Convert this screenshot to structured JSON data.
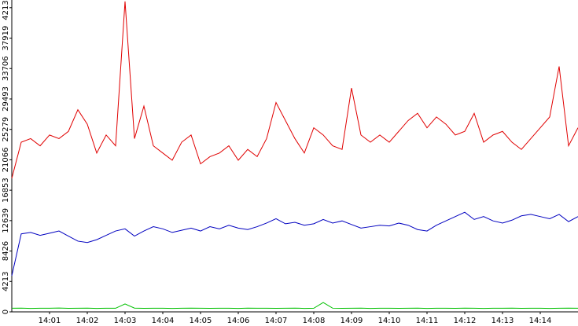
{
  "chart_data": {
    "type": "line",
    "x": [
      0,
      0.25,
      0.5,
      0.75,
      1,
      1.25,
      1.5,
      1.75,
      2,
      2.25,
      2.5,
      2.75,
      3,
      3.25,
      3.5,
      3.75,
      4,
      4.25,
      4.5,
      4.75,
      5,
      5.25,
      5.5,
      5.75,
      6,
      6.25,
      6.5,
      6.75,
      7,
      7.25,
      7.5,
      7.75,
      8,
      8.25,
      8.5,
      8.75,
      9,
      9.25,
      9.5,
      9.75,
      10,
      10.25,
      10.5,
      10.75,
      11,
      11.25,
      11.5,
      11.75,
      12,
      12.25,
      12.5,
      12.75,
      13,
      13.25,
      13.5,
      13.75,
      14,
      14.25,
      14.5,
      14.75,
      15
    ],
    "series": [
      {
        "color": "#e00000",
        "values": [
          18500,
          23500,
          24000,
          23000,
          24500,
          24000,
          25000,
          28000,
          26000,
          22000,
          24500,
          23000,
          43000,
          24000,
          28500,
          23000,
          22000,
          21000,
          23500,
          24500,
          20500,
          21500,
          22000,
          23000,
          21000,
          22500,
          21500,
          24000,
          29000,
          26500,
          24000,
          22000,
          25500,
          24500,
          23000,
          22500,
          31000,
          24500,
          23500,
          24500,
          23500,
          25000,
          26500,
          27500,
          25500,
          27000,
          26000,
          24500,
          25000,
          27500,
          23500,
          24500,
          25000,
          23500,
          22500,
          24000,
          25500,
          27000,
          34000,
          23000,
          25500
        ]
      },
      {
        "color": "#0000c0",
        "values": [
          5000,
          10800,
          11000,
          10600,
          10900,
          11200,
          10500,
          9800,
          9600,
          10000,
          10600,
          11200,
          11500,
          10500,
          11200,
          11800,
          11500,
          11000,
          11300,
          11600,
          11200,
          11800,
          11500,
          12000,
          11600,
          11400,
          11800,
          12300,
          12900,
          12200,
          12400,
          12000,
          12200,
          12800,
          12300,
          12600,
          12100,
          11600,
          11800,
          12000,
          11900,
          12300,
          12000,
          11400,
          11200,
          12000,
          12600,
          13200,
          13800,
          12800,
          13200,
          12600,
          12300,
          12700,
          13300,
          13500,
          13200,
          12900,
          13500,
          12500,
          13200
        ]
      },
      {
        "color": "#00c000",
        "values": [
          500,
          520,
          480,
          510,
          500,
          530,
          490,
          500,
          520,
          480,
          510,
          500,
          1100,
          520,
          490,
          500,
          510,
          480,
          500,
          520,
          500,
          490,
          510,
          500,
          480,
          520,
          500,
          510,
          490,
          500,
          520,
          480,
          500,
          1300,
          510,
          490,
          500,
          520,
          480,
          500,
          510,
          490,
          500,
          520,
          480,
          510,
          500,
          490,
          520,
          500,
          480,
          510,
          500,
          520,
          490,
          500,
          510,
          480,
          500,
          520,
          500
        ]
      }
    ],
    "xlim": [
      0,
      15
    ],
    "xticks": [
      {
        "value": 1,
        "label": "14:01"
      },
      {
        "value": 2,
        "label": "14:02"
      },
      {
        "value": 3,
        "label": "14:03"
      },
      {
        "value": 4,
        "label": "14:04"
      },
      {
        "value": 5,
        "label": "14:05"
      },
      {
        "value": 6,
        "label": "14:06"
      },
      {
        "value": 7,
        "label": "14:07"
      },
      {
        "value": 8,
        "label": "14:08"
      },
      {
        "value": 9,
        "label": "14:09"
      },
      {
        "value": 10,
        "label": "14:10"
      },
      {
        "value": 11,
        "label": "14:11"
      },
      {
        "value": 12,
        "label": "14:12"
      },
      {
        "value": 13,
        "label": "14:13"
      },
      {
        "value": 14,
        "label": "14:14"
      }
    ],
    "ylim": [
      0,
      43200
    ],
    "yticks": [
      0,
      4213,
      8426,
      12639,
      16853,
      21066,
      25279,
      29493,
      33706,
      37919,
      42133
    ]
  }
}
